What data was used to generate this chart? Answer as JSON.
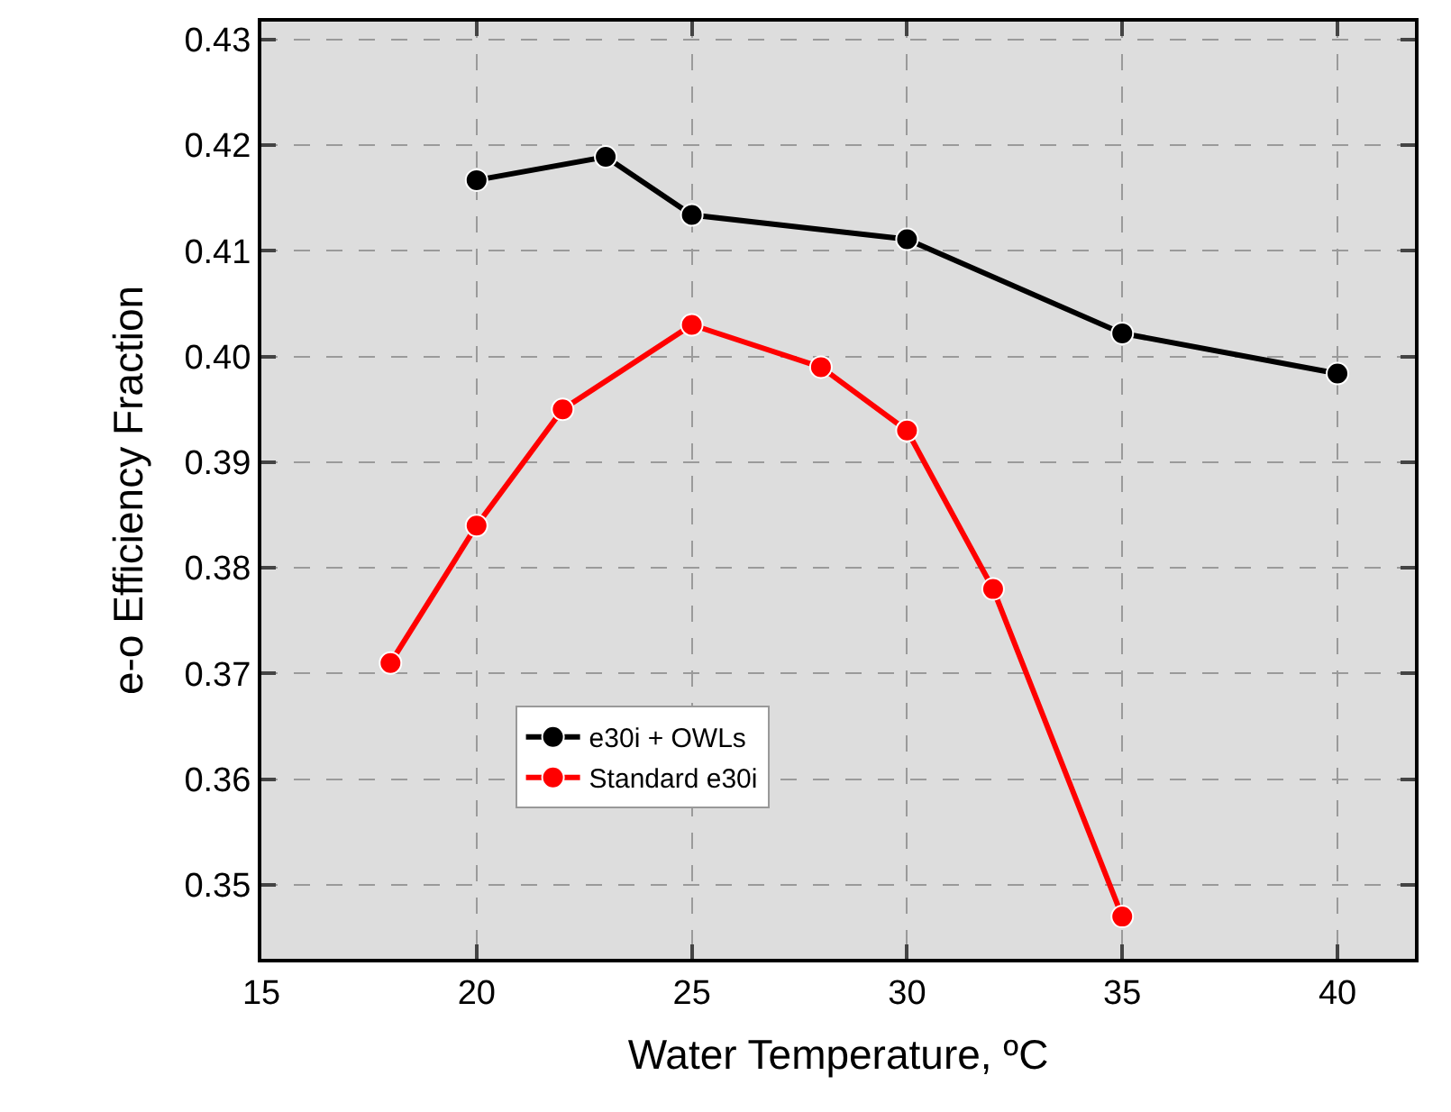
{
  "chart_data": {
    "type": "line",
    "xlabel": "Water Temperature, ºC",
    "ylabel": "e-o Efficiency Fraction",
    "series": [
      {
        "name": "e30i + OWLs",
        "color": "#000000",
        "x": [
          20,
          23,
          25,
          30,
          35,
          40
        ],
        "values": [
          0.4167,
          0.4189,
          0.4134,
          0.4111,
          0.4022,
          0.3984
        ]
      },
      {
        "name": "Standard e30i",
        "color": "#ff0000",
        "x": [
          18,
          20,
          22,
          25,
          28,
          30,
          32,
          35
        ],
        "values": [
          0.371,
          0.384,
          0.395,
          0.403,
          0.399,
          0.393,
          0.378,
          0.347
        ]
      }
    ],
    "xlim": [
      15,
      41.8
    ],
    "xticks": [
      15,
      20,
      25,
      30,
      35,
      40
    ],
    "ylim": [
      0.343,
      0.4317
    ],
    "yticks": [
      {
        "value": 0.35,
        "label": "0.35"
      },
      {
        "value": 0.36,
        "label": "0.36"
      },
      {
        "value": 0.37,
        "label": "0.37"
      },
      {
        "value": 0.38,
        "label": "0.38"
      },
      {
        "value": 0.39,
        "label": "0.39"
      },
      {
        "value": 0.4,
        "label": "0.40"
      },
      {
        "value": 0.41,
        "label": "0.41"
      },
      {
        "value": 0.42,
        "label": "0.42"
      },
      {
        "value": 0.43,
        "label": "0.43"
      }
    ],
    "grid": true,
    "legend": "bottom left",
    "marker": "circle",
    "line_style": "solid"
  }
}
